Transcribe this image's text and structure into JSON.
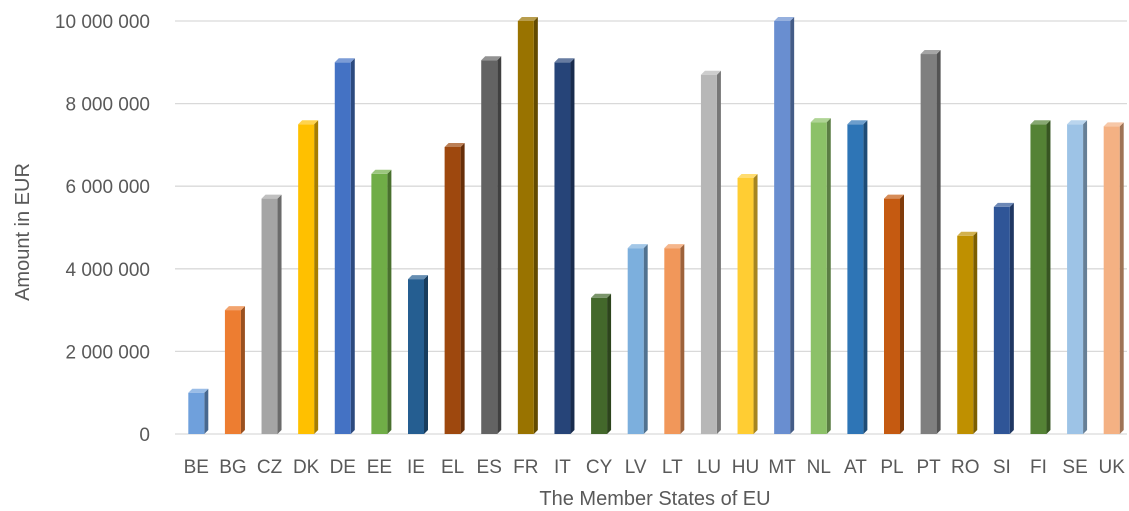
{
  "chart_data": {
    "type": "bar",
    "xlabel": "The Member States of EU",
    "ylabel": "Amount in EUR",
    "ylim": [
      0,
      10000000
    ],
    "yticks": [
      0,
      2000000,
      4000000,
      6000000,
      8000000,
      10000000
    ],
    "ytick_labels": [
      "0",
      "2 000 000",
      "4 000 000",
      "6 000 000",
      "8 000 000",
      "10 000 000"
    ],
    "grid": true,
    "style": "3d-bars",
    "categories": [
      "BE",
      "BG",
      "CZ",
      "DK",
      "DE",
      "EE",
      "IE",
      "EL",
      "ES",
      "FR",
      "IT",
      "CY",
      "LV",
      "LT",
      "LU",
      "HU",
      "MT",
      "NL",
      "AT",
      "PL",
      "PT",
      "RO",
      "SI",
      "FI",
      "SE",
      "UK"
    ],
    "values": [
      1000000,
      3000000,
      5700000,
      7500000,
      9000000,
      6300000,
      3750000,
      6950000,
      9050000,
      10000000,
      9000000,
      3300000,
      4500000,
      4500000,
      8700000,
      6200000,
      10000000,
      7550000,
      7500000,
      5700000,
      9200000,
      4800000,
      5500000,
      7500000,
      7500000,
      7450000
    ],
    "colors": [
      "#6fa0dc",
      "#ed7d31",
      "#a5a5a5",
      "#ffc000",
      "#4472c4",
      "#70ad47",
      "#255e91",
      "#9e480e",
      "#636363",
      "#997300",
      "#264478",
      "#43682b",
      "#7cafdd",
      "#f1975a",
      "#b7b7b7",
      "#ffcd33",
      "#698ed0",
      "#8cc168",
      "#2e75b6",
      "#c55a11",
      "#7f7f7f",
      "#bf9000",
      "#2f5597",
      "#548235",
      "#9dc3e6",
      "#f4b183"
    ]
  }
}
